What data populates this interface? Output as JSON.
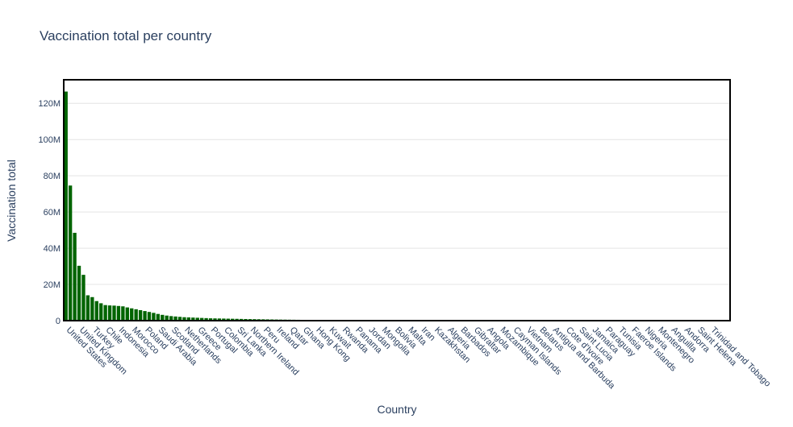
{
  "chart_data": {
    "type": "bar",
    "title": "Vaccination total per country",
    "xlabel": "Country",
    "ylabel": "Vaccination total",
    "ylim": [
      0,
      133000000
    ],
    "yticks": [
      {
        "value": 0,
        "label": "0"
      },
      {
        "value": 20000000,
        "label": "20M"
      },
      {
        "value": 40000000,
        "label": "40M"
      },
      {
        "value": 60000000,
        "label": "60M"
      },
      {
        "value": 80000000,
        "label": "80M"
      },
      {
        "value": 100000000,
        "label": "100M"
      },
      {
        "value": 120000000,
        "label": "120M"
      }
    ],
    "grid": true,
    "bar_color": "#006400",
    "frame_color": "#000000",
    "category_count": 152,
    "tick_labels": [
      "United States",
      "United Kingdom",
      "Turkey",
      "Chile",
      "Indonesia",
      "Morocco",
      "Poland",
      "Saudi Arabia",
      "Scotland",
      "Netherlands",
      "Greece",
      "Portugal",
      "Colombia",
      "Sri Lanka",
      "Northern Ireland",
      "Peru",
      "Ireland",
      "Qatar",
      "Ghana",
      "Hong Kong",
      "Kuwait",
      "Rwanda",
      "Panama",
      "Jordan",
      "Mongolia",
      "Bolivia",
      "Malta",
      "Iran",
      "Kazakhstan",
      "Algeria",
      "Barbados",
      "Gibraltar",
      "Angola",
      "Mozambique",
      "Cayman Islands",
      "Vietnam",
      "Belarus",
      "Antigua and Barbuda",
      "Cote d'Ivoire",
      "Saint Lucia",
      "Jamaica",
      "Paraguay",
      "Tunisia",
      "Faeroe Islands",
      "Nigeria",
      "Montenegro",
      "Anguilla",
      "Andorra",
      "Saint Helena",
      "Trinidad and Tobago"
    ],
    "values": [
      126500000,
      74600000,
      48500000,
      30300000,
      25300000,
      14000000,
      13000000,
      10800000,
      9600000,
      8600000,
      8400000,
      8300000,
      8100000,
      7900000,
      7300000,
      6800000,
      6300000,
      5800000,
      5300000,
      4800000,
      4300000,
      3700000,
      3200000,
      2800000,
      2500000,
      2300000,
      2100000,
      1900000,
      1800000,
      1700000,
      1600000,
      1500000,
      1400000,
      1300000,
      1250000,
      1200000,
      1150000,
      1100000,
      1050000,
      1000000,
      950000,
      900000,
      860000,
      820000,
      780000,
      740000,
      700000,
      660000,
      620000,
      590000,
      560000,
      530000,
      500000,
      470000,
      440000,
      410000,
      380000,
      355000,
      330000,
      310000,
      290000,
      270000,
      255000,
      240000,
      225000,
      210000,
      198000,
      186000,
      175000,
      164000,
      154000,
      144000,
      135000,
      126000,
      118000,
      110000,
      103000,
      96000,
      90000,
      84000,
      78000,
      73000,
      68000,
      63000,
      59000,
      55000,
      51000,
      47000,
      44000,
      41000,
      38000,
      35000,
      32000,
      30000,
      28000,
      26000,
      24000,
      22000,
      20500,
      19000,
      17500,
      16000,
      15000,
      14000,
      13000,
      12000,
      11000,
      10200,
      9400,
      8700,
      8000,
      7400,
      6800,
      6200,
      5700,
      5200,
      4800,
      4400,
      4000,
      3700,
      3400,
      3100,
      2800,
      2500,
      2300,
      2100,
      1900,
      1700,
      1500,
      1350,
      1200,
      1050,
      950,
      850,
      750,
      650,
      560,
      480,
      410,
      350,
      300,
      250,
      210,
      175,
      145,
      120,
      100,
      80,
      60,
      45,
      30,
      20
    ]
  }
}
